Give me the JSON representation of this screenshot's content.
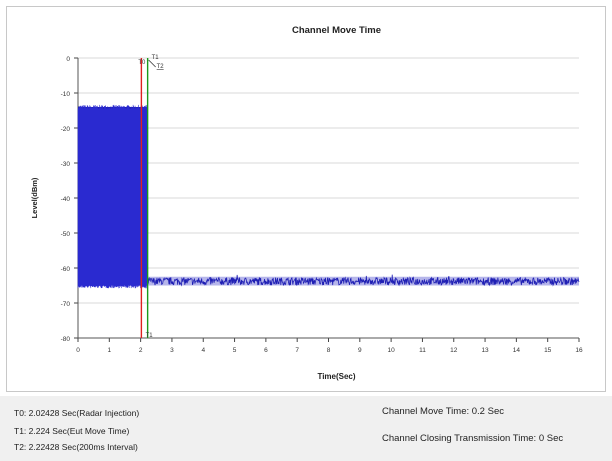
{
  "chart_data": {
    "type": "line",
    "title": "Channel Move Time",
    "xlabel": "Time(Sec)",
    "ylabel": "Level(dBm)",
    "xlim": [
      0,
      16
    ],
    "ylim": [
      -80,
      0
    ],
    "xticks": [
      0,
      1,
      2,
      3,
      4,
      5,
      6,
      7,
      8,
      9,
      10,
      11,
      12,
      13,
      14,
      15,
      16
    ],
    "yticks": [
      0,
      -10,
      -20,
      -30,
      -40,
      -50,
      -60,
      -70,
      -80
    ],
    "grid": "horizontal",
    "series": [
      {
        "color": "#1f1fb4",
        "segments": [
          {
            "x_start": 0,
            "x_end": 2.2,
            "level_top": -14,
            "level_bottom": -65,
            "fill": "dense-burst"
          },
          {
            "x_start": 2.2,
            "x_end": 16,
            "level_center": -63.8,
            "level_top": -62.5,
            "level_bottom": -65,
            "fill": "noise-floor"
          }
        ]
      }
    ],
    "markers": [
      {
        "name": "T0",
        "x": 2.02428,
        "color": "#e02020"
      },
      {
        "name": "T1",
        "x": 2.224,
        "color": "#1a9a1a"
      },
      {
        "name": "T2",
        "x": 2.22428,
        "color": "#1a9a1a"
      }
    ]
  },
  "notes": {
    "t0": "T0: 2.02428 Sec(Radar Injection)",
    "t1": "T1: 2.224 Sec(Eut Move Time)",
    "t2": "T2: 2.22428 Sec(200ms Interval)",
    "move_time": "Channel Move Time: 0.2 Sec",
    "closing_time": "Channel Closing Transmission Time: 0 Sec"
  }
}
